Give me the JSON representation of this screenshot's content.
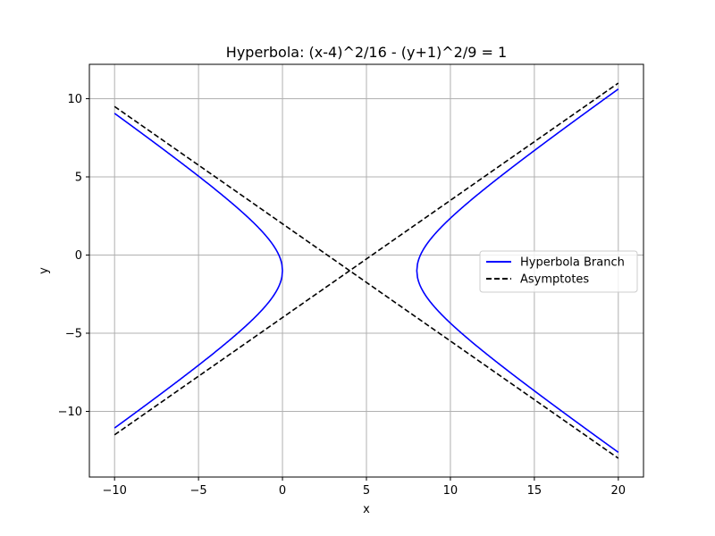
{
  "chart_data": {
    "type": "line",
    "title": "Hyperbola: (x-4)^2/16 - (y+1)^2/9 = 1",
    "xlabel": "x",
    "ylabel": "y",
    "xlim": [
      -11.5,
      21.5
    ],
    "ylim": [
      -14.2,
      12.2
    ],
    "xticks": [
      -10,
      -5,
      0,
      5,
      10,
      15,
      20
    ],
    "yticks": [
      -10,
      -5,
      0,
      5,
      10
    ],
    "xtick_labels": [
      "−10",
      "−5",
      "0",
      "5",
      "10",
      "15",
      "20"
    ],
    "ytick_labels": [
      "−10",
      "−5",
      "0",
      "5",
      "10"
    ],
    "grid": true,
    "legend_position": "center-right",
    "hyperbola": {
      "h": 4,
      "k": -1,
      "a": 4,
      "b": 3
    },
    "x_domain": [
      -10,
      20
    ],
    "series": [
      {
        "name": "Hyperbola Branch",
        "color": "#0000ff",
        "style": "solid"
      },
      {
        "name": "Asymptotes",
        "color": "#000000",
        "style": "dashed"
      }
    ]
  }
}
